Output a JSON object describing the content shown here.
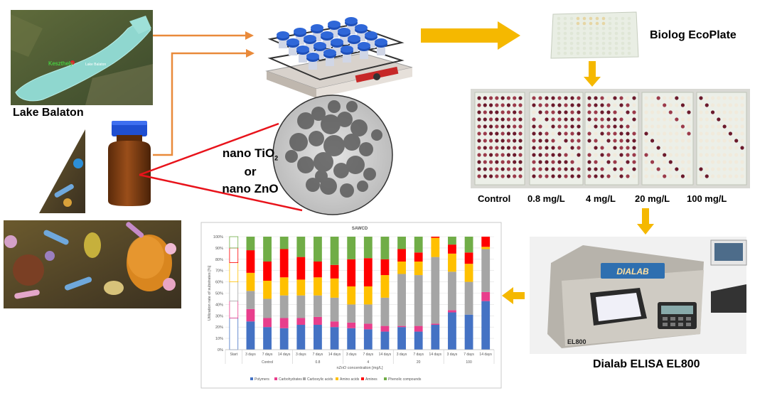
{
  "labels": {
    "lake": "Lake Balaton",
    "map_place_1": "Keszthely",
    "map_place_2": "Lake Balaton",
    "ecoplate": "Biolog EcoPlate",
    "nano_line_1_base": "nano TiO",
    "nano_line_1_sub": "2",
    "nano_line_2": "or",
    "nano_line_3": "nano ZnO",
    "elisa": "Dialab ELISA EL800",
    "reader_brand": "DIALAB",
    "reader_model": "EL800"
  },
  "plate_concentrations": [
    "Control",
    "0.8 mg/L",
    "4 mg/L",
    "20 mg/L",
    "100 mg/L"
  ],
  "colors": {
    "arrow_orange": "#e98a3a",
    "arrow_yellow": "#f5b800",
    "line_red": "#e8131b"
  },
  "chart_data": {
    "type": "bar",
    "stacked": true,
    "title": "SAWCD",
    "ylabel": "Utilization rate of substrates [%]",
    "xlabel": "nZnO concentration [mg/L]",
    "ylim": [
      0,
      100
    ],
    "yticks": [
      "0%",
      "10%",
      "20%",
      "30%",
      "40%",
      "50%",
      "60%",
      "70%",
      "80%",
      "90%",
      "100%"
    ],
    "categories": [
      "Start",
      "3 days",
      "7 days",
      "14 days",
      "3 days",
      "7 days",
      "14 days",
      "3 days",
      "7 days",
      "14 days",
      "3 days",
      "7 days",
      "14 days",
      "3 days",
      "7 days",
      "14 days"
    ],
    "groups": [
      {
        "label": "Control",
        "start": 1,
        "end": 3
      },
      {
        "label": "0.8",
        "start": 4,
        "end": 6
      },
      {
        "label": "4",
        "start": 7,
        "end": 9
      },
      {
        "label": "20",
        "start": 10,
        "end": 12
      },
      {
        "label": "100",
        "start": 13,
        "end": 15
      }
    ],
    "legend_position": "bottom",
    "series": [
      {
        "name": "Polymers",
        "color": "#4472c4",
        "values": [
          28,
          25,
          20,
          19,
          22,
          22,
          20,
          19,
          18,
          16,
          20,
          16,
          22,
          33,
          31,
          43
        ]
      },
      {
        "name": "Carbohydrates",
        "color": "#e83e8c",
        "values": [
          15,
          11,
          8,
          9,
          6,
          7,
          5,
          5,
          5,
          5,
          1,
          5,
          1,
          2,
          0,
          8
        ]
      },
      {
        "name": "Carboxylic acids",
        "color": "#a5a5a5",
        "values": [
          17,
          16,
          17,
          20,
          20,
          19,
          21,
          16,
          17,
          25,
          46,
          45,
          59,
          34,
          29,
          38
        ]
      },
      {
        "name": "Amino acids",
        "color": "#ffc000",
        "values": [
          17,
          16,
          16,
          16,
          14,
          16,
          17,
          16,
          16,
          20,
          11,
          12,
          17,
          16,
          16,
          2
        ]
      },
      {
        "name": "Amines",
        "color": "#ff0000",
        "values": [
          13,
          20,
          17,
          25,
          20,
          14,
          12,
          24,
          25,
          14,
          11,
          8,
          1,
          8,
          10,
          9
        ]
      },
      {
        "name": "Phenolic compounds",
        "color": "#70ad47",
        "values": [
          10,
          12,
          22,
          11,
          18,
          22,
          25,
          20,
          19,
          20,
          11,
          14,
          0,
          7,
          14,
          0
        ]
      }
    ]
  }
}
